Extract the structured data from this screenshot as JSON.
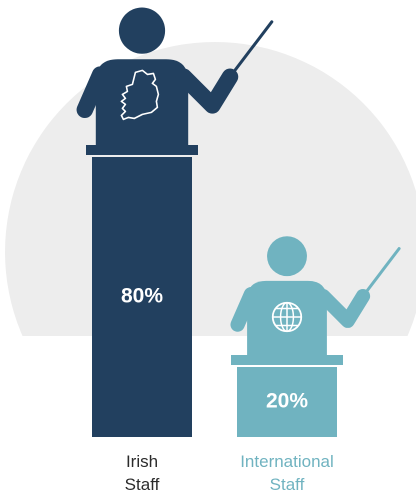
{
  "chart_data": {
    "type": "bar",
    "categories": [
      "Irish Staff",
      "International Staff"
    ],
    "values": [
      80,
      20
    ],
    "value_labels": [
      "80%",
      "20%"
    ],
    "colors": [
      "#22405f",
      "#70b3c0"
    ],
    "label_colors": [
      "#2b2b2b",
      "#70b3c0"
    ]
  }
}
